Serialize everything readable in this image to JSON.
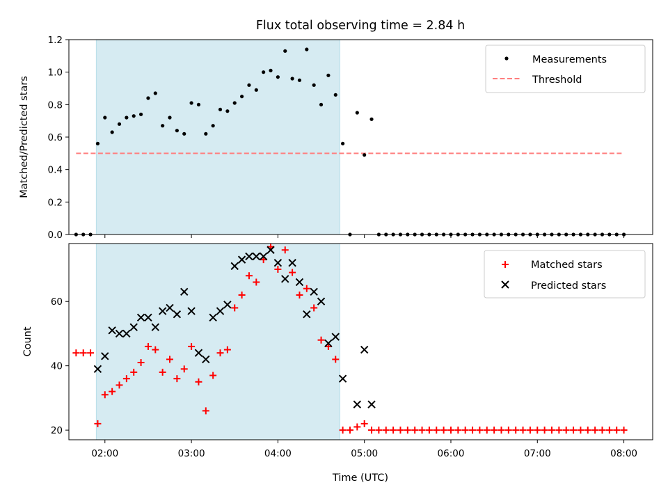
{
  "chart_data": [
    {
      "type": "scatter",
      "title": "Flux total observing time = 2.84 h",
      "xlabel": "",
      "ylabel": "Matched/Predicted stars",
      "xlim": [
        "01:35",
        "08:20"
      ],
      "ylim": [
        0,
        1.2
      ],
      "yticks": [
        "0.0",
        "0.2",
        "0.4",
        "0.6",
        "0.8",
        "1.0",
        "1.2"
      ],
      "grid": false,
      "legend_position": "top-right",
      "shaded_interval": {
        "start": "01:54",
        "end": "04:43",
        "color": "#add8e6"
      },
      "threshold": {
        "name": "Threshold",
        "value": 0.5,
        "x_start": "01:40",
        "x_end": "08:00",
        "color": "#ff7f7f",
        "style": "dashed"
      },
      "series": [
        {
          "name": "Measurements",
          "color": "#000000",
          "marker": "dot",
          "x": [
            "01:40",
            "01:45",
            "01:50",
            "01:55",
            "02:00",
            "02:05",
            "02:10",
            "02:15",
            "02:20",
            "02:25",
            "02:30",
            "02:35",
            "02:40",
            "02:45",
            "02:50",
            "02:55",
            "03:00",
            "03:05",
            "03:10",
            "03:15",
            "03:20",
            "03:25",
            "03:30",
            "03:35",
            "03:40",
            "03:45",
            "03:50",
            "03:55",
            "04:00",
            "04:05",
            "04:10",
            "04:15",
            "04:20",
            "04:25",
            "04:30",
            "04:35",
            "04:40",
            "04:45",
            "04:50",
            "04:55",
            "05:00",
            "05:05",
            "05:10",
            "05:15",
            "05:20",
            "05:25",
            "05:30",
            "05:35",
            "05:40",
            "05:45",
            "05:50",
            "05:55",
            "06:00",
            "06:05",
            "06:10",
            "06:15",
            "06:20",
            "06:25",
            "06:30",
            "06:35",
            "06:40",
            "06:45",
            "06:50",
            "06:55",
            "07:00",
            "07:05",
            "07:10",
            "07:15",
            "07:20",
            "07:25",
            "07:30",
            "07:35",
            "07:40",
            "07:45",
            "07:50",
            "07:55",
            "08:00"
          ],
          "y": [
            0,
            0,
            0,
            0.56,
            0.72,
            0.63,
            0.68,
            0.72,
            0.73,
            0.74,
            0.84,
            0.87,
            0.67,
            0.72,
            0.64,
            0.62,
            0.81,
            0.8,
            0.62,
            0.67,
            0.77,
            0.76,
            0.81,
            0.85,
            0.92,
            0.89,
            1.0,
            1.01,
            0.97,
            1.13,
            0.96,
            0.95,
            1.14,
            0.92,
            0.8,
            0.98,
            0.86,
            0.56,
            0,
            0.75,
            0.49,
            0.71,
            0,
            0,
            0,
            0,
            0,
            0,
            0,
            0,
            0,
            0,
            0,
            0,
            0,
            0,
            0,
            0,
            0,
            0,
            0,
            0,
            0,
            0,
            0,
            0,
            0,
            0,
            0,
            0,
            0,
            0,
            0,
            0,
            0,
            0,
            0
          ]
        }
      ]
    },
    {
      "type": "scatter",
      "title": "",
      "xlabel": "Time (UTC)",
      "ylabel": "Count",
      "xlim": [
        "01:35",
        "08:20"
      ],
      "ylim": [
        17,
        78
      ],
      "xticks": [
        "02:00",
        "03:00",
        "04:00",
        "05:00",
        "06:00",
        "07:00",
        "08:00"
      ],
      "yticks": [
        "20",
        "40",
        "60"
      ],
      "grid": false,
      "legend_position": "top-right",
      "shaded_interval": {
        "start": "01:54",
        "end": "04:43",
        "color": "#add8e6"
      },
      "series": [
        {
          "name": "Matched stars",
          "color": "#ff0000",
          "marker": "plus",
          "x": [
            "01:40",
            "01:45",
            "01:50",
            "01:55",
            "02:00",
            "02:05",
            "02:10",
            "02:15",
            "02:20",
            "02:25",
            "02:30",
            "02:35",
            "02:40",
            "02:45",
            "02:50",
            "02:55",
            "03:00",
            "03:05",
            "03:10",
            "03:15",
            "03:20",
            "03:25",
            "03:30",
            "03:35",
            "03:40",
            "03:45",
            "03:50",
            "03:55",
            "04:00",
            "04:05",
            "04:10",
            "04:15",
            "04:20",
            "04:25",
            "04:30",
            "04:35",
            "04:40",
            "04:45",
            "04:50",
            "04:55",
            "05:00",
            "05:05",
            "05:10",
            "05:15",
            "05:20",
            "05:25",
            "05:30",
            "05:35",
            "05:40",
            "05:45",
            "05:50",
            "05:55",
            "06:00",
            "06:05",
            "06:10",
            "06:15",
            "06:20",
            "06:25",
            "06:30",
            "06:35",
            "06:40",
            "06:45",
            "06:50",
            "06:55",
            "07:00",
            "07:05",
            "07:10",
            "07:15",
            "07:20",
            "07:25",
            "07:30",
            "07:35",
            "07:40",
            "07:45",
            "07:50",
            "07:55",
            "08:00"
          ],
          "y": [
            44,
            44,
            44,
            22,
            31,
            32,
            34,
            36,
            38,
            41,
            46,
            45,
            38,
            42,
            36,
            39,
            46,
            35,
            26,
            37,
            44,
            45,
            58,
            62,
            68,
            66,
            73,
            77,
            70,
            76,
            69,
            62,
            64,
            58,
            48,
            46,
            42,
            20,
            20,
            21,
            22,
            20,
            20,
            20,
            20,
            20,
            20,
            20,
            20,
            20,
            20,
            20,
            20,
            20,
            20,
            20,
            20,
            20,
            20,
            20,
            20,
            20,
            20,
            20,
            20,
            20,
            20,
            20,
            20,
            20,
            20,
            20,
            20,
            20,
            20,
            20,
            20
          ]
        },
        {
          "name": "Predicted stars",
          "color": "#000000",
          "marker": "x",
          "x": [
            "01:55",
            "02:00",
            "02:05",
            "02:10",
            "02:15",
            "02:20",
            "02:25",
            "02:30",
            "02:35",
            "02:40",
            "02:45",
            "02:50",
            "02:55",
            "03:00",
            "03:05",
            "03:10",
            "03:15",
            "03:20",
            "03:25",
            "03:30",
            "03:35",
            "03:40",
            "03:45",
            "03:50",
            "03:55",
            "04:00",
            "04:05",
            "04:10",
            "04:15",
            "04:20",
            "04:25",
            "04:30",
            "04:35",
            "04:40",
            "04:45",
            "04:50",
            "04:55",
            "05:00",
            "05:05"
          ],
          "y": [
            39,
            43,
            51,
            50,
            50,
            52,
            55,
            55,
            52,
            57,
            58,
            56,
            63,
            57,
            44,
            42,
            55,
            57,
            59,
            71,
            73,
            74,
            74,
            74,
            76,
            72,
            67,
            72,
            66,
            56,
            63,
            60,
            47,
            49,
            36,
            null,
            28,
            45,
            28
          ]
        }
      ]
    }
  ]
}
